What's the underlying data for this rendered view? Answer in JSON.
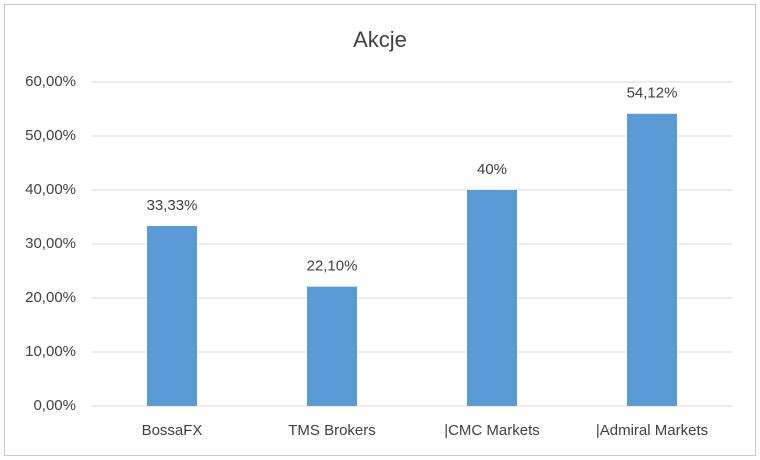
{
  "chart_data": {
    "type": "bar",
    "title": "Akcje",
    "categories": [
      "BossaFX",
      "TMS Brokers",
      "|CMC Markets",
      "|Admiral Markets"
    ],
    "values": [
      33.33,
      22.1,
      40,
      54.12
    ],
    "value_labels": [
      "33,33%",
      "22,10%",
      "40%",
      "54,12%"
    ],
    "color": "#5b9bd5",
    "ylim": [
      0,
      60
    ],
    "yticks": [
      {
        "value": 0,
        "label": "0,00%"
      },
      {
        "value": 10,
        "label": "10,00%"
      },
      {
        "value": 20,
        "label": "20,00%"
      },
      {
        "value": 30,
        "label": "30,00%"
      },
      {
        "value": 40,
        "label": "40,00%"
      },
      {
        "value": 50,
        "label": "50,00%"
      },
      {
        "value": 60,
        "label": "60,00%"
      }
    ],
    "grid": true
  }
}
